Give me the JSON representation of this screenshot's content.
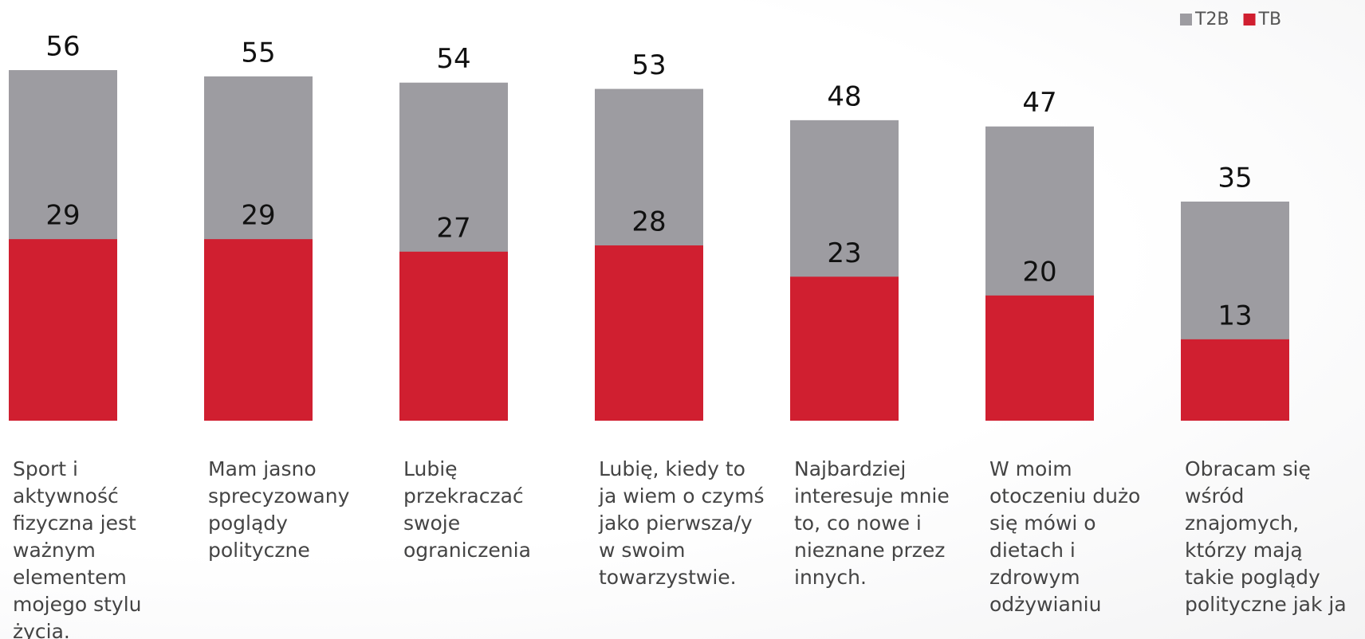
{
  "chart_data": {
    "type": "bar",
    "categories": [
      "Sport i aktywność fizyczna jest ważnym elementem mojego stylu życia.",
      "Mam jasno sprecyzowany poglądy polityczne",
      "Lubię przekraczać swoje ograniczenia",
      "Lubię, kiedy to ja wiem o czymś jako pierwsza/y w swoim towarzystwie.",
      "Najbardziej interesuje mnie to, co nowe i nieznane przez innych.",
      "W moim otoczeniu dużo się mówi o dietach i zdrowym odżywianiu",
      "Obracam się wśród znajomych, którzy mają takie poglądy polityczne jak ja"
    ],
    "series": [
      {
        "name": "T2B",
        "color": "#9d9ca1",
        "values": [
          56,
          55,
          54,
          53,
          48,
          47,
          35
        ]
      },
      {
        "name": "TB",
        "color": "#d01f30",
        "values": [
          29,
          29,
          27,
          28,
          23,
          20,
          13
        ]
      }
    ],
    "legend": "top-right"
  }
}
